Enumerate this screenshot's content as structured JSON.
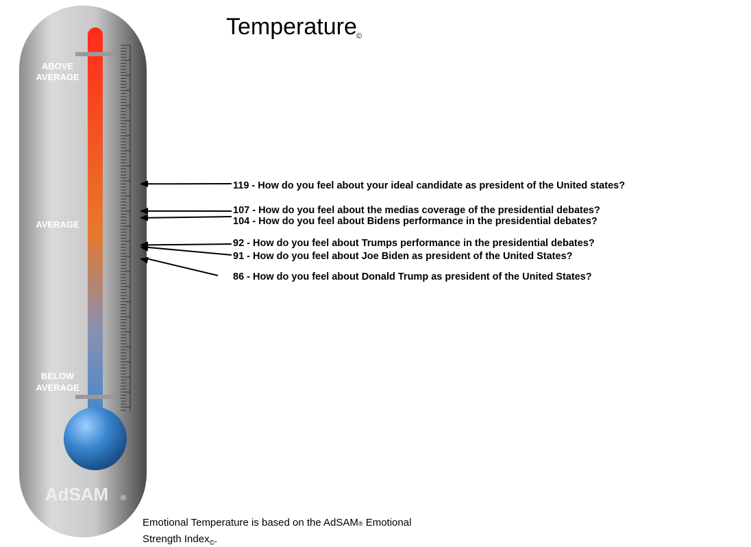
{
  "chart_data": {
    "type": "thermometer",
    "title": "Temperature",
    "title_mark": "©",
    "zones": [
      "ABOVE",
      "AVERAGE",
      "AVERAGE",
      "BELOW",
      "AVERAGE"
    ],
    "brand": "AdSAM",
    "brand_mark": "®",
    "categories": [
      "119 - How do you feel about your ideal candidate as president of the United states?",
      "107 - How do you feel about the medias coverage of the presidential debates?",
      "104 - How do you feel about Bidens performance in the presidential debates?",
      "92 - How do you feel about Trumps performance in the presidential debates?",
      "91 - How do you feel about Joe Biden as president of the United States?",
      "86 - How do you feel about Donald Trump as president of the United States?"
    ],
    "values": [
      119,
      107,
      104,
      92,
      91,
      86
    ],
    "ylim": [
      20,
      180
    ],
    "footer": [
      "Emotional Temperature is based on the AdSAM",
      "®",
      " Emotional",
      "Strength Index",
      "©",
      "."
    ]
  }
}
